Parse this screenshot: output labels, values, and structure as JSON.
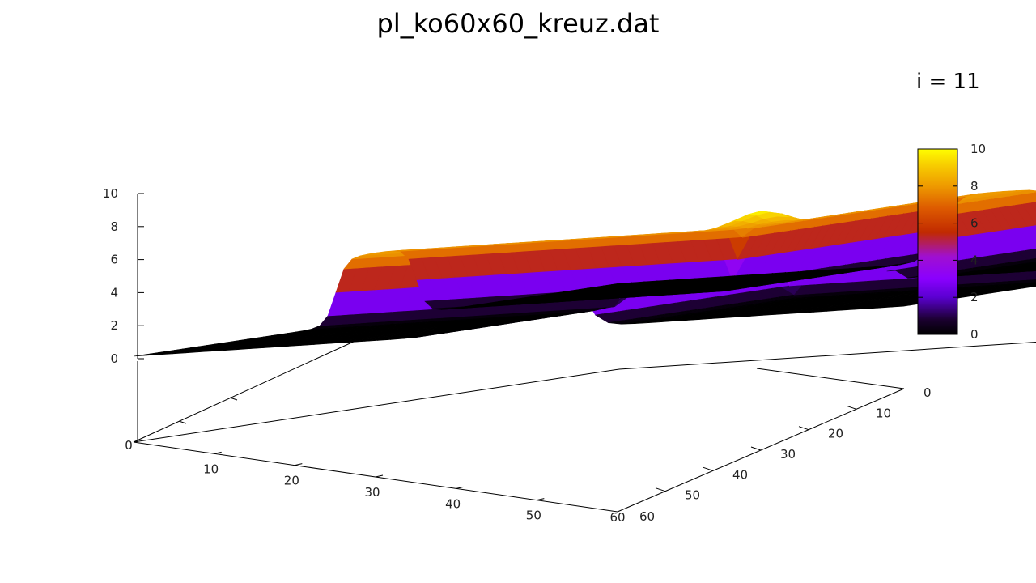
{
  "chart_data": {
    "type": "surface3d",
    "title": "pl_ko60x60_kreuz.dat",
    "annotation": "i = 11",
    "description_grid": "60x60",
    "x": {
      "range": [
        0,
        60
      ],
      "ticks": [
        0,
        10,
        20,
        30,
        40,
        50,
        60
      ]
    },
    "y": {
      "range": [
        0,
        60
      ],
      "ticks": [
        0,
        10,
        20,
        30,
        40,
        50,
        60
      ]
    },
    "z": {
      "range": [
        0,
        10
      ],
      "ticks": [
        0,
        2,
        4,
        6,
        8,
        10
      ]
    },
    "surface": {
      "shape": "cross",
      "plateau_value": 8,
      "peak_value": 10,
      "peak_location": [
        30,
        30
      ],
      "bar_along_x": {
        "y_center": 30,
        "half_width": 5
      },
      "bar_along_y": {
        "x_center": 30,
        "half_width": 5
      },
      "background_value": 0
    },
    "colorbox": {
      "ticks": [
        0,
        2,
        4,
        6,
        8,
        10
      ],
      "palette": [
        "#000000",
        "#7a00ff",
        "#c62a00",
        "#ee9200",
        "#ffff00"
      ]
    }
  }
}
